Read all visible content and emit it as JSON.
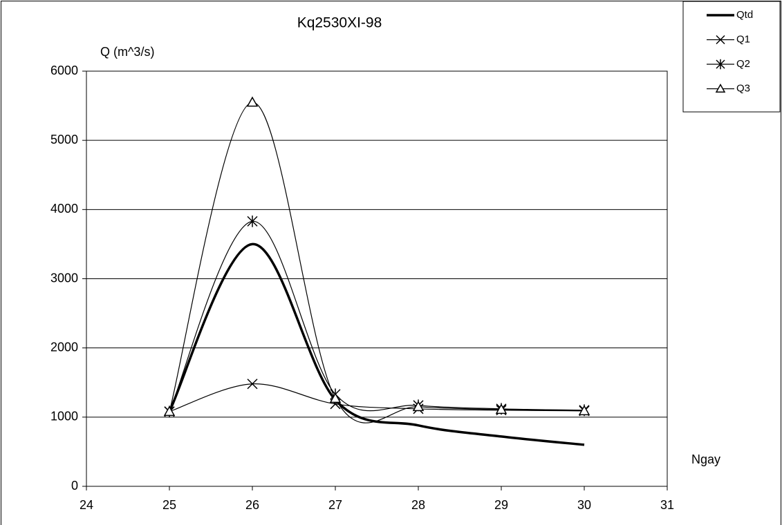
{
  "chart_data": {
    "type": "line",
    "title": "Kq2530XI-98",
    "y_label": "Q (m^3/s)",
    "x_label": "Ngay",
    "x": [
      25,
      26,
      27,
      28,
      29,
      30
    ],
    "series": [
      {
        "name": "Qtd",
        "color": "#000000",
        "line_width": 3.5,
        "marker": null,
        "values": [
          1080,
          3500,
          1250,
          880,
          720,
          600
        ]
      },
      {
        "name": "Q1",
        "color": "#000000",
        "line_width": 1.2,
        "marker": "x",
        "values": [
          1080,
          1480,
          1190,
          1120,
          1100,
          1090
        ]
      },
      {
        "name": "Q2",
        "color": "#000000",
        "line_width": 1.2,
        "marker": "star",
        "values": [
          1080,
          3830,
          1330,
          1170,
          1120,
          1100
        ]
      },
      {
        "name": "Q3",
        "color": "#000000",
        "line_width": 1.2,
        "marker": "triangle",
        "values": [
          1080,
          5550,
          1270,
          1150,
          1110,
          1090
        ]
      }
    ],
    "smooth": true,
    "xlim": [
      24,
      31
    ],
    "xticks": [
      24,
      25,
      26,
      27,
      28,
      29,
      30,
      31
    ],
    "ylim": [
      0,
      6000
    ],
    "yticks": [
      0,
      1000,
      2000,
      3000,
      4000,
      5000,
      6000
    ],
    "grid": true,
    "legend": "top-right"
  }
}
